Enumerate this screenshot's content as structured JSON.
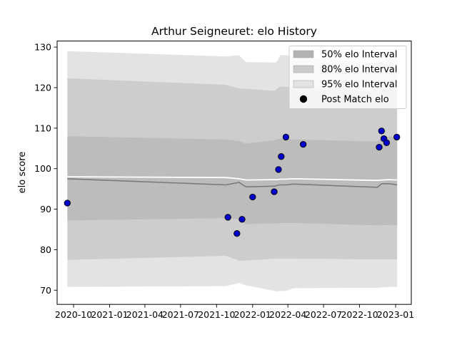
{
  "chart_data": {
    "type": "area",
    "title": "Arthur Seigneuret: elo History",
    "xlabel": "",
    "ylabel": "elo score",
    "x_ticks": [
      "2020-10",
      "2021-01",
      "2021-04",
      "2021-07",
      "2021-10",
      "2022-01",
      "2022-04",
      "2022-07",
      "2022-10",
      "2023-01"
    ],
    "y_ticks": [
      70,
      80,
      90,
      100,
      110,
      120,
      130
    ],
    "xlim": [
      "2020-08-20",
      "2023-02-10"
    ],
    "ylim": [
      66.5,
      131.5
    ],
    "grid": false,
    "legend_position": "top-right",
    "legend": [
      {
        "label": "50% elo Interval",
        "color": "#b2b2b2"
      },
      {
        "label": "80% elo Interval",
        "color": "#cacaca"
      },
      {
        "label": "95% elo Interval",
        "color": "#e3e3e3"
      },
      {
        "label": "Post Match elo",
        "color": "#000000"
      }
    ],
    "interval_dates": [
      "2020-09-15",
      "2021-10-25",
      "2021-11-27",
      "2021-12-15",
      "2022-02-27",
      "2022-03-05",
      "2022-03-12",
      "2022-03-27",
      "2022-04-15",
      "2022-11-15",
      "2022-11-27",
      "2022-12-15",
      "2023-01-05"
    ],
    "mean": [
      97.5,
      96.0,
      96.6,
      95.5,
      95.7,
      95.9,
      96.0,
      96.0,
      96.2,
      95.4,
      96.3,
      96.3,
      96.0
    ],
    "upper_line": [
      98.0,
      97.8,
      97.5,
      97.2,
      97.3,
      97.3,
      97.4,
      97.4,
      97.5,
      97.1,
      97.2,
      97.3,
      97.2
    ],
    "band_50": {
      "upper": [
        108.0,
        107.2,
        106.8,
        106.2,
        107.0,
        107.3,
        107.4,
        107.4,
        107.2,
        106.7,
        107.6,
        107.9,
        107.8
      ],
      "lower": [
        87.2,
        87.8,
        87.5,
        86.3,
        86.5,
        86.5,
        86.6,
        86.6,
        86.6,
        86.0,
        86.0,
        86.1,
        86.1
      ]
    },
    "band_80": {
      "upper": [
        122.3,
        120.7,
        119.8,
        119.7,
        119.2,
        119.8,
        120.2,
        120.2,
        120.0,
        119.0,
        119.3,
        119.8,
        120.0
      ],
      "lower": [
        77.5,
        78.5,
        77.3,
        77.3,
        77.8,
        77.8,
        77.8,
        77.8,
        77.8,
        77.6,
        77.6,
        77.6,
        77.6
      ]
    },
    "band_95": {
      "upper": [
        129.0,
        127.7,
        128.0,
        126.3,
        126.2,
        126.5,
        128.0,
        128.0,
        127.8,
        126.0,
        126.6,
        127.1,
        127.2
      ],
      "lower": [
        70.8,
        71.0,
        71.8,
        71.2,
        69.8,
        69.7,
        69.8,
        69.8,
        70.5,
        70.6,
        70.7,
        70.8,
        70.8
      ]
    },
    "post_match_elo": [
      {
        "x": "2020-09-15",
        "y": 91.5
      },
      {
        "x": "2021-10-30",
        "y": 88.0
      },
      {
        "x": "2021-11-22",
        "y": 84.0
      },
      {
        "x": "2021-12-05",
        "y": 87.5
      },
      {
        "x": "2022-01-01",
        "y": 93.0
      },
      {
        "x": "2022-02-25",
        "y": 94.3
      },
      {
        "x": "2022-03-08",
        "y": 99.8
      },
      {
        "x": "2022-03-15",
        "y": 103.0
      },
      {
        "x": "2022-03-27",
        "y": 107.8
      },
      {
        "x": "2022-05-10",
        "y": 106.0
      },
      {
        "x": "2022-11-20",
        "y": 105.3
      },
      {
        "x": "2022-11-26",
        "y": 109.3
      },
      {
        "x": "2022-12-02",
        "y": 107.4
      },
      {
        "x": "2022-12-09",
        "y": 106.4
      },
      {
        "x": "2023-01-04",
        "y": 107.8
      }
    ]
  }
}
